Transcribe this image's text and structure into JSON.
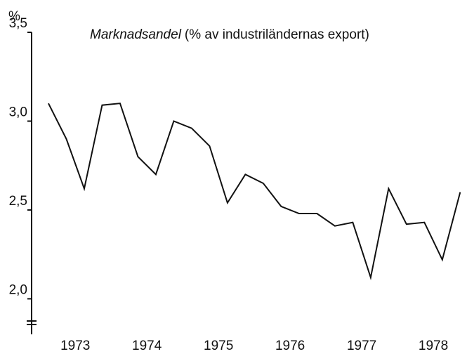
{
  "chart_data": {
    "type": "line",
    "title": "Marknadsandel",
    "subtitle": "(% av industriländernas export)",
    "y_label": "%",
    "x": [
      1973.125,
      1973.375,
      1973.625,
      1973.875,
      1974.125,
      1974.375,
      1974.625,
      1974.875,
      1975.125,
      1975.375,
      1975.625,
      1975.875,
      1976.125,
      1976.375,
      1976.625,
      1976.875,
      1977.125,
      1977.375,
      1977.625,
      1977.875,
      1978.125,
      1978.375,
      1978.625,
      1978.875
    ],
    "values": [
      3.1,
      2.9,
      2.62,
      3.09,
      3.1,
      2.8,
      2.7,
      3.0,
      2.96,
      2.86,
      2.54,
      2.7,
      2.65,
      2.52,
      2.48,
      2.48,
      2.41,
      2.43,
      2.12,
      2.62,
      2.42,
      2.43,
      2.22,
      2.6
    ],
    "color": "#111111",
    "xlim": [
      1972.89,
      1978.97
    ],
    "xticks": [
      {
        "value": 1973.5,
        "label": "1973"
      },
      {
        "value": 1974.5,
        "label": "1974"
      },
      {
        "value": 1975.5,
        "label": "1975"
      },
      {
        "value": 1976.5,
        "label": "1976"
      },
      {
        "value": 1977.5,
        "label": "1977"
      },
      {
        "value": 1978.5,
        "label": "1978"
      }
    ],
    "ylim": [
      1.8,
      3.5
    ],
    "yticks": [
      {
        "value": 2.0,
        "label": "2,0"
      },
      {
        "value": 2.5,
        "label": "2,5"
      },
      {
        "value": 3.0,
        "label": "3,0"
      },
      {
        "value": 3.5,
        "label": "3,5"
      }
    ]
  }
}
